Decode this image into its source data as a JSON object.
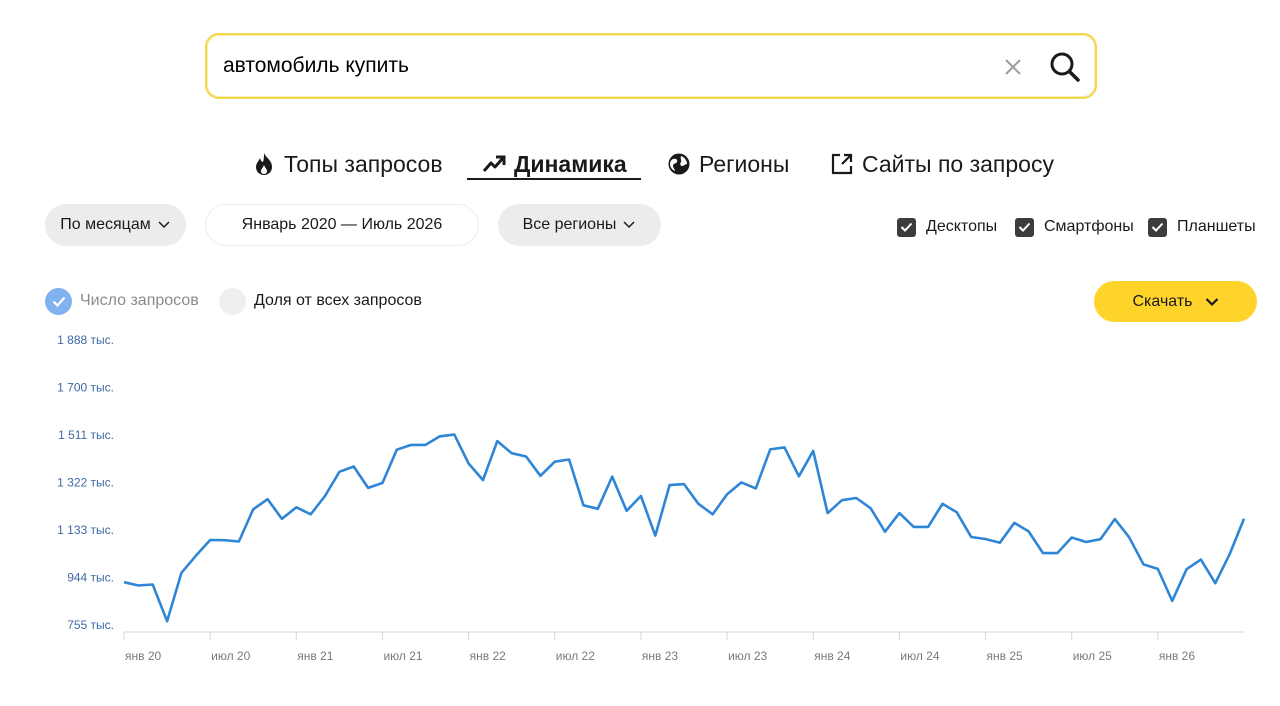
{
  "search": {
    "query": "автомобиль купить"
  },
  "tabs": [
    {
      "label": "Топы запросов",
      "icon": "fire-icon",
      "active": false
    },
    {
      "label": "Динамика",
      "icon": "trend-up-icon",
      "active": true
    },
    {
      "label": "Регионы",
      "icon": "globe-icon",
      "active": false
    },
    {
      "label": "Сайты по запросу",
      "icon": "external-link-icon",
      "active": false
    }
  ],
  "filters": {
    "period": "По месяцам",
    "date_range": "Январь 2020 — Июль 2026",
    "region": "Все регионы"
  },
  "devices": [
    {
      "label": "Десктопы",
      "checked": true
    },
    {
      "label": "Смартфоны",
      "checked": true
    },
    {
      "label": "Планшеты",
      "checked": true
    }
  ],
  "metric": {
    "count_label": "Число запросов",
    "share_label": "Доля от всех запросов",
    "selected": "count"
  },
  "download_label": "Скачать",
  "colors": {
    "accent": "#fed42b",
    "line": "#2f86d6",
    "ylabel": "#3d6aa6",
    "search_border": "#f2d64a"
  },
  "chart_data": {
    "type": "line",
    "yticks": [
      "1 888 тыс.",
      "1 700 тыс.",
      "1 511 тыс.",
      "1 322 тыс.",
      "1 133 тыс.",
      "944 тыс.",
      "755 тыс."
    ],
    "ytick_values": [
      1888,
      1700,
      1511,
      1322,
      1133,
      944,
      755
    ],
    "ylim": [
      755,
      1888
    ],
    "xticks": [
      "янв 20",
      "июл 20",
      "янв 21",
      "июл 21",
      "янв 22",
      "июл 22",
      "янв 23",
      "июл 23",
      "янв 24",
      "июл 24",
      "янв 25",
      "июл 25",
      "янв 26"
    ],
    "unit": "тыс.",
    "series": [
      {
        "values": [
          925,
          912,
          916,
          770,
          962,
          1030,
          1093,
          1092,
          1087,
          1215,
          1255,
          1177,
          1223,
          1195,
          1268,
          1364,
          1385,
          1300,
          1320,
          1452,
          1471,
          1471,
          1505,
          1512,
          1397,
          1331,
          1486,
          1438,
          1425,
          1348,
          1404,
          1413,
          1231,
          1217,
          1345,
          1209,
          1268,
          1110,
          1311,
          1315,
          1237,
          1195,
          1275,
          1322,
          1298,
          1453,
          1461,
          1346,
          1447,
          1200,
          1251,
          1260,
          1219,
          1126,
          1200,
          1145,
          1145,
          1237,
          1203,
          1105,
          1097,
          1082,
          1161,
          1127,
          1041,
          1041,
          1103,
          1085,
          1096,
          1176,
          1104,
          996,
          978,
          851,
          977,
          1015,
          921,
          1036,
          1177
        ]
      }
    ]
  }
}
